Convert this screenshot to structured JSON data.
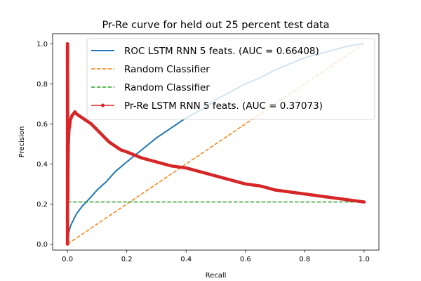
{
  "chart_data": {
    "type": "line",
    "title": "Pr-Re curve for held out 25 percent test data",
    "xlabel": "Recall",
    "ylabel": "Precision",
    "xlim": [
      -0.05,
      1.05
    ],
    "ylim": [
      -0.03,
      1.05
    ],
    "xticks": [
      "0.0",
      "0.2",
      "0.4",
      "0.6",
      "0.8",
      "1.0"
    ],
    "yticks": [
      "0.0",
      "0.2",
      "0.4",
      "0.6",
      "0.8",
      "1.0"
    ],
    "grid": false,
    "legend_position": "top-right",
    "series": [
      {
        "name": "ROC LSTM RNN 5 feats. (AUC = 0.66408)",
        "color": "#1f77b4",
        "style": "solid",
        "points": [
          [
            0,
            0
          ],
          [
            0.005,
            0.06
          ],
          [
            0.01,
            0.09
          ],
          [
            0.02,
            0.12
          ],
          [
            0.03,
            0.15
          ],
          [
            0.05,
            0.19
          ],
          [
            0.07,
            0.22
          ],
          [
            0.1,
            0.27
          ],
          [
            0.13,
            0.31
          ],
          [
            0.16,
            0.36
          ],
          [
            0.2,
            0.41
          ],
          [
            0.25,
            0.47
          ],
          [
            0.3,
            0.53
          ],
          [
            0.35,
            0.58
          ],
          [
            0.4,
            0.63
          ],
          [
            0.45,
            0.67
          ],
          [
            0.5,
            0.72
          ],
          [
            0.55,
            0.76
          ],
          [
            0.6,
            0.8
          ],
          [
            0.65,
            0.83
          ],
          [
            0.7,
            0.87
          ],
          [
            0.75,
            0.9
          ],
          [
            0.8,
            0.93
          ],
          [
            0.85,
            0.95
          ],
          [
            0.9,
            0.97
          ],
          [
            0.95,
            0.99
          ],
          [
            1.0,
            1.0
          ]
        ]
      },
      {
        "name": "Random Classifier",
        "color": "#ff7f0e",
        "style": "dashed",
        "points": [
          [
            0,
            0
          ],
          [
            1,
            1
          ]
        ]
      },
      {
        "name": "Random Classifier",
        "color": "#2ca02c",
        "style": "dashed",
        "points": [
          [
            0,
            0.21
          ],
          [
            1,
            0.21
          ]
        ]
      },
      {
        "name": "Pr-Re LSTM RNN 5 feats. (AUC = 0.37073)",
        "color": "#d62728",
        "style": "solid-markers",
        "points": [
          [
            0,
            0
          ],
          [
            0,
            1.0
          ],
          [
            0.001,
            0.22
          ],
          [
            0.002,
            0.42
          ],
          [
            0.003,
            0.5
          ],
          [
            0.005,
            0.57
          ],
          [
            0.008,
            0.6
          ],
          [
            0.01,
            0.62
          ],
          [
            0.015,
            0.64
          ],
          [
            0.02,
            0.65
          ],
          [
            0.025,
            0.66
          ],
          [
            0.03,
            0.65
          ],
          [
            0.04,
            0.64
          ],
          [
            0.05,
            0.63
          ],
          [
            0.06,
            0.62
          ],
          [
            0.08,
            0.6
          ],
          [
            0.1,
            0.57
          ],
          [
            0.12,
            0.54
          ],
          [
            0.14,
            0.51
          ],
          [
            0.16,
            0.49
          ],
          [
            0.18,
            0.47
          ],
          [
            0.2,
            0.46
          ],
          [
            0.25,
            0.43
          ],
          [
            0.3,
            0.41
          ],
          [
            0.35,
            0.39
          ],
          [
            0.4,
            0.38
          ],
          [
            0.45,
            0.36
          ],
          [
            0.5,
            0.34
          ],
          [
            0.55,
            0.32
          ],
          [
            0.6,
            0.3
          ],
          [
            0.65,
            0.29
          ],
          [
            0.7,
            0.27
          ],
          [
            0.75,
            0.26
          ],
          [
            0.8,
            0.25
          ],
          [
            0.85,
            0.24
          ],
          [
            0.9,
            0.23
          ],
          [
            0.95,
            0.22
          ],
          [
            1.0,
            0.21
          ]
        ]
      }
    ]
  }
}
